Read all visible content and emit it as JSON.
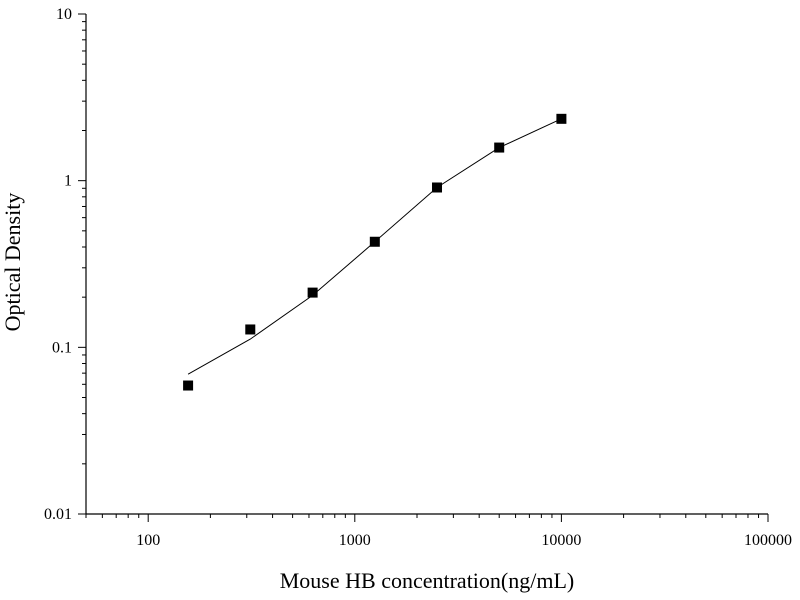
{
  "chart_data": {
    "type": "scatter",
    "title": "",
    "xlabel": "Mouse HB concentration(ng/mL)",
    "ylabel": "Optical Density",
    "x_scale": "log",
    "y_scale": "log",
    "xlim": [
      50,
      100000
    ],
    "ylim": [
      0.01,
      10
    ],
    "x_ticks": [
      100,
      1000,
      10000,
      100000
    ],
    "x_tick_labels": [
      "100",
      "1000",
      "10000",
      "100000"
    ],
    "y_ticks": [
      0.01,
      0.1,
      1,
      10
    ],
    "y_tick_labels": [
      "0.01",
      "0.1",
      "1",
      "10"
    ],
    "grid": false,
    "legend": "none",
    "series": [
      {
        "marker": "square",
        "color": "#000000",
        "x": [
          156,
          312,
          625,
          1250,
          2500,
          5000,
          10000
        ],
        "y": [
          0.059,
          0.128,
          0.213,
          0.43,
          0.91,
          1.58,
          2.35
        ]
      }
    ],
    "fit_curve": {
      "color": "#000000",
      "x": [
        156,
        312,
        625,
        1250,
        2500,
        5000,
        10000
      ],
      "y": [
        0.069,
        0.112,
        0.205,
        0.43,
        0.91,
        1.58,
        2.35
      ]
    }
  }
}
